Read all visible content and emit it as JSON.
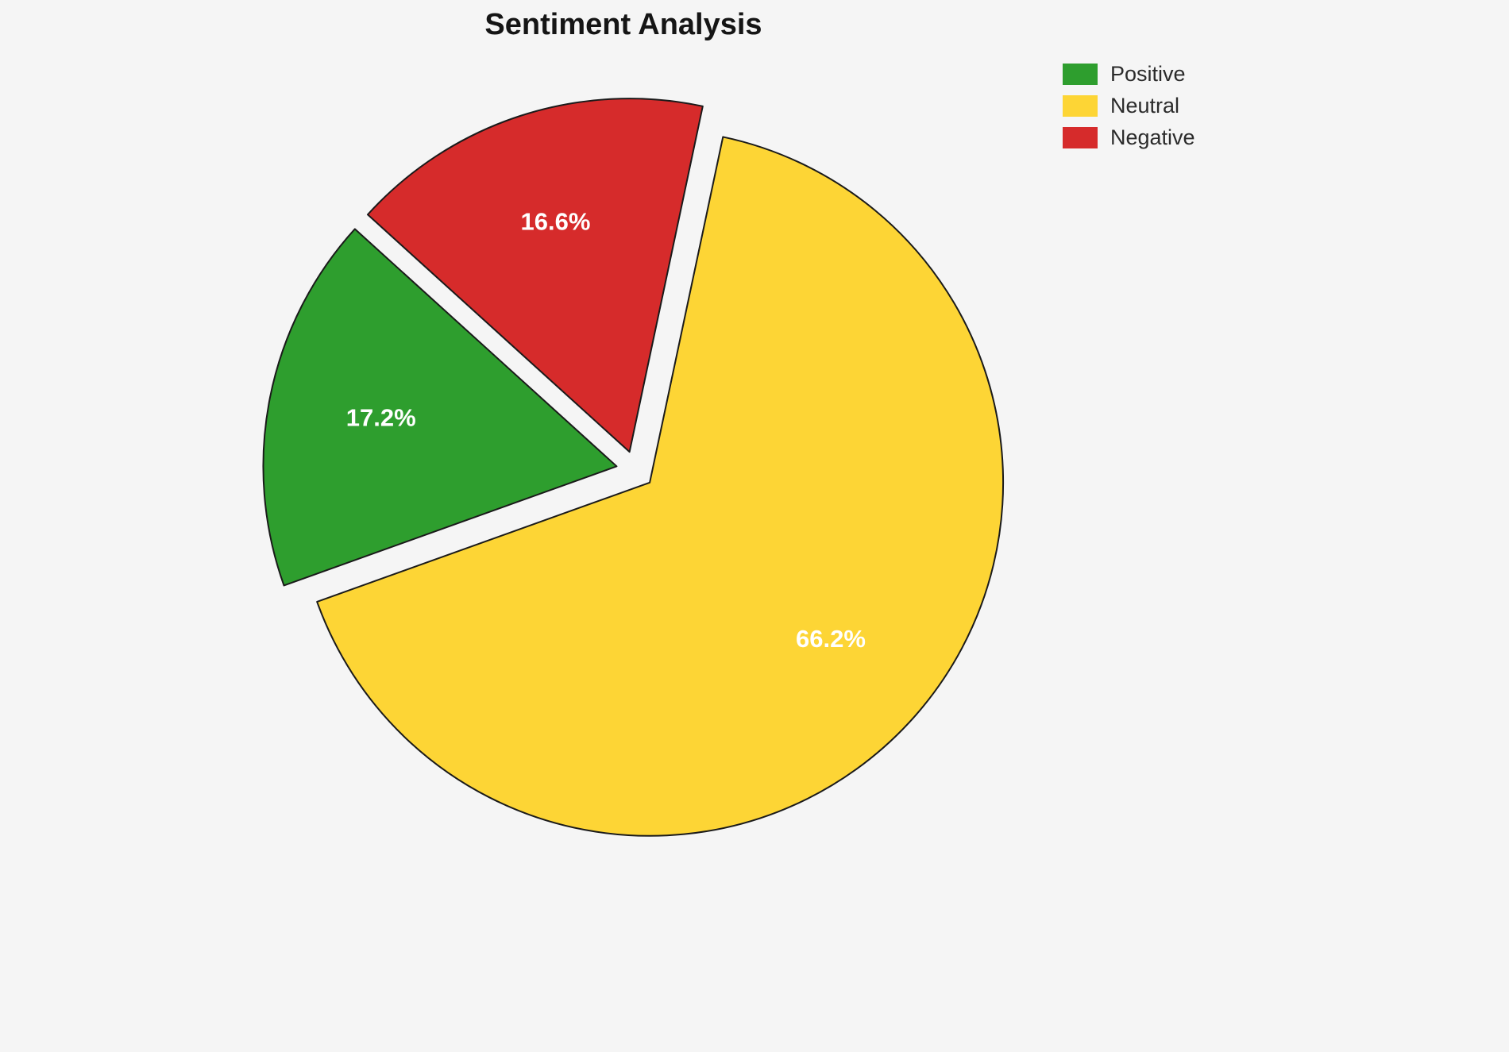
{
  "title": "Sentiment Analysis",
  "background_color": "#f5f5f5",
  "chart_data": {
    "type": "pie",
    "title": "Sentiment Analysis",
    "slices": [
      {
        "label": "Positive",
        "value": 17.2,
        "pct_label": "17.2%",
        "color": "#2e9e2e"
      },
      {
        "label": "Neutral",
        "value": 66.2,
        "pct_label": "66.2%",
        "color": "#fdd535"
      },
      {
        "label": "Negative",
        "value": 16.6,
        "pct_label": "16.6%",
        "color": "#d62b2b"
      }
    ],
    "legend": {
      "position": "upper right",
      "entries": [
        "Positive",
        "Neutral",
        "Negative"
      ]
    },
    "start_angle_deg": 137.8,
    "counterclockwise": true,
    "exploded": true,
    "edge_color": "#1a1a1a"
  }
}
